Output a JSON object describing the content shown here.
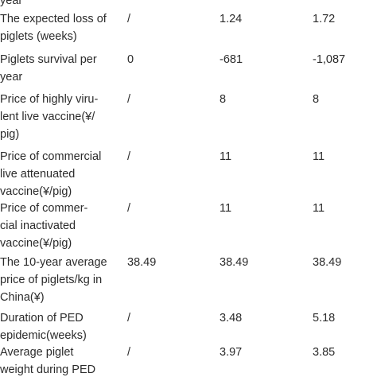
{
  "table": {
    "rows": [
      [
        "year"
      ],
      [
        "The expected loss of\npiglets (weeks)",
        "/",
        "1.24",
        "1.72"
      ],
      [
        "Piglets survival per\nyear",
        "0",
        "-681",
        "-1,087"
      ],
      [
        "Price of highly viru-\nlent live vaccine(¥/\npig)",
        "/",
        "8",
        "8"
      ],
      [
        "Price of commercial\nlive attenuated\nvaccine(¥/pig)",
        "/",
        "11",
        "11"
      ],
      [
        "Price of commer-\ncial inactivated\nvaccine(¥/pig)",
        "/",
        "11",
        "11"
      ],
      [
        "The 10-year average\nprice of piglets/kg in\nChina(¥)",
        "38.49",
        "38.49",
        "38.49"
      ],
      [
        "Duration of PED\nepidemic(weeks)",
        "/",
        "3.48",
        "5.18"
      ],
      [
        "Average piglet\nweight during PED",
        "/",
        "3.97",
        "3.85"
      ]
    ]
  }
}
